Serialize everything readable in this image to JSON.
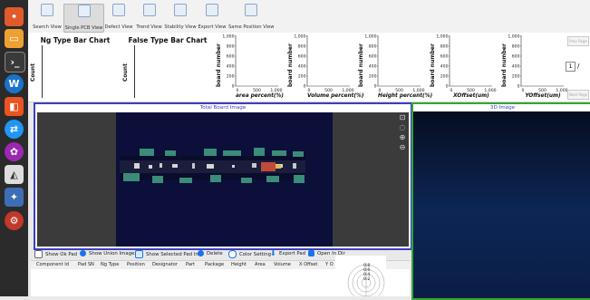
{
  "toolbar": {
    "views": [
      {
        "label": "Search View",
        "icon": "search-icon"
      },
      {
        "label": "Single PCB View",
        "icon": "pcb-icon"
      },
      {
        "label": "Defect View",
        "icon": "defect-icon"
      },
      {
        "label": "Trend View",
        "icon": "trend-icon"
      },
      {
        "label": "Stability View",
        "icon": "filter-icon"
      },
      {
        "label": "Export View",
        "icon": "export-icon"
      },
      {
        "label": "Same Position View",
        "icon": "position-icon"
      }
    ],
    "active": "Single PCB View"
  },
  "charts": {
    "ng_title": "Ng Type Bar Chart",
    "false_title": "False Type Bar Chart",
    "count_label": "Count",
    "y_label": "board number",
    "y_ticks": [
      "1,000",
      "800",
      "600",
      "400",
      "200",
      "0"
    ],
    "x_ticks": [
      "0",
      "500",
      "1,000"
    ],
    "scatter_x_labels": [
      "area percent(%)",
      "Volume percent(%)",
      "Height percent(%)",
      "XOffset(um)",
      "YOffset(um)"
    ]
  },
  "right_controls": {
    "page_value": "1",
    "page_sep": "/",
    "top_button": "Prev Page",
    "bottom_button": "Next Page"
  },
  "board_panel": {
    "title": "Total Board Image"
  },
  "panel3d": {
    "title": "3D Image"
  },
  "options": {
    "show_ok_pad": "Show Ok Pad",
    "show_union_image": "Show Union Image",
    "show_selected_pad_info": "Show Selected Pad Info",
    "delete": "Delete",
    "color_setting": "Color Setting",
    "export_pad": "Export Pad",
    "open_in_dir": "Open In Dir"
  },
  "table": {
    "columns": [
      "Component Id",
      "Pad SN",
      "Ng Type",
      "Position",
      "Designator",
      "Part",
      "Package",
      "Height",
      "Area",
      "Volume",
      "X Offset",
      "Y O"
    ]
  },
  "radar": {
    "ticks": [
      "0.2",
      "0.4",
      "0.6",
      "0.8"
    ]
  },
  "colors": {
    "board_border": "#3b3fc4",
    "panel3d_border": "#35a635",
    "pcb_background": "#0c0f3a",
    "dock": "#2b2b2b"
  }
}
